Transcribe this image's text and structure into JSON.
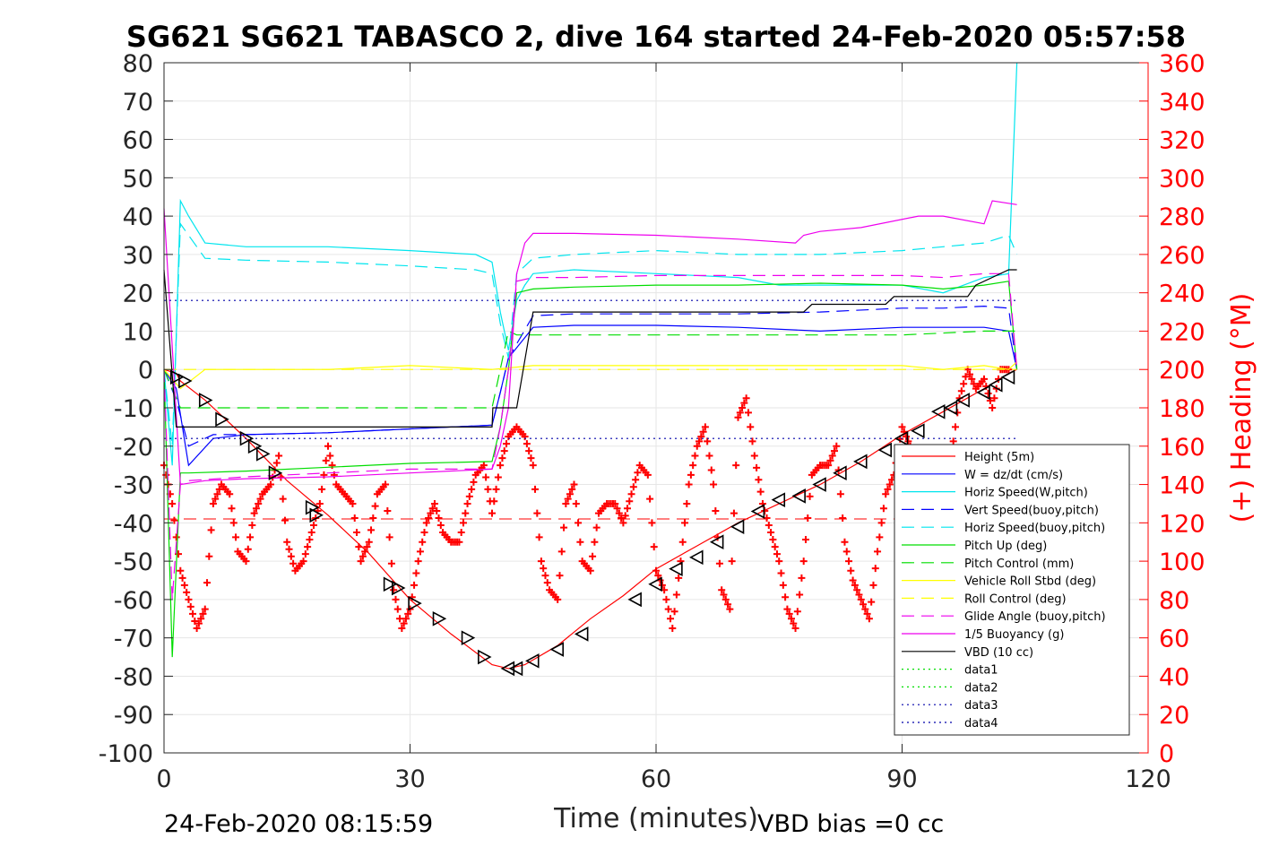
{
  "chart_data": {
    "type": "line",
    "title": "SG621 SG621 TABASCO 2, dive 164 started 24-Feb-2020 05:57:58",
    "xlabel": "Time (minutes)",
    "ylabel": "",
    "y2label": "(+) Heading (°M)",
    "xlim": [
      0,
      120
    ],
    "ylim": [
      -100,
      80
    ],
    "y2lim": [
      0,
      360
    ],
    "grid": true,
    "legend_position": "bottom-right",
    "xticks": [
      "0",
      "30",
      "60",
      "90",
      "120"
    ],
    "yticks": [
      "80",
      "70",
      "60",
      "50",
      "40",
      "30",
      "20",
      "10",
      "0",
      "-10",
      "-20",
      "-30",
      "-40",
      "-50",
      "-60",
      "-70",
      "-80",
      "-90",
      "-100"
    ],
    "y2ticks": [
      "360",
      "340",
      "320",
      "300",
      "280",
      "260",
      "240",
      "220",
      "200",
      "180",
      "160",
      "140",
      "120",
      "100",
      "80",
      "60",
      "40",
      "20",
      "0"
    ],
    "footer_left": "24-Feb-2020 08:15:59",
    "footer_right": "VBD bias =0 cc",
    "series": [
      {
        "name": "Height (5m)",
        "color": "#ff0000",
        "style": "solid",
        "x": [
          0,
          1.5,
          2,
          5,
          10,
          15,
          20,
          25,
          30,
          35,
          40,
          42,
          44,
          48,
          52,
          56,
          60,
          65,
          70,
          75,
          80,
          85,
          90,
          95,
          100,
          103,
          104
        ],
        "y": [
          0,
          -1,
          -3,
          -8,
          -18,
          -29,
          -38,
          -48,
          -60,
          -69,
          -77,
          -78,
          -77,
          -72,
          -65,
          -59,
          -52,
          -46,
          -40,
          -35,
          -30,
          -24,
          -17,
          -11,
          -5,
          -1,
          0
        ]
      },
      {
        "name": "W = dz/dt (cm/s)",
        "color": "#0000ff",
        "style": "solid",
        "x": [
          0,
          1.5,
          3,
          6,
          10,
          20,
          30,
          40,
          41,
          42,
          45,
          50,
          60,
          70,
          80,
          90,
          95,
          100,
          103,
          104
        ],
        "y": [
          0,
          -5,
          -25,
          -18,
          -17,
          -16.5,
          -15.5,
          -14.5,
          -6,
          3,
          11,
          11.5,
          11.5,
          11,
          10,
          11,
          11,
          11,
          10,
          0
        ]
      },
      {
        "name": "Horiz Speed(W,pitch)",
        "color": "#00e5ee",
        "style": "solid",
        "x": [
          0,
          1,
          2,
          3,
          5,
          10,
          20,
          30,
          38,
          40,
          41,
          42,
          43,
          44,
          45,
          50,
          60,
          70,
          75,
          80,
          90,
          95,
          100,
          103,
          104
        ],
        "y": [
          0,
          -25,
          44,
          40,
          33,
          32,
          32,
          31,
          30,
          28,
          15,
          5,
          18,
          22,
          25,
          26,
          25,
          24,
          22,
          22,
          22,
          20,
          24,
          25,
          80
        ]
      },
      {
        "name": "Vert Speed(buoy,pitch)",
        "color": "#0000ff",
        "style": "dashed",
        "x": [
          0,
          1.5,
          3,
          6,
          10,
          20,
          30,
          40,
          41,
          42,
          45,
          50,
          60,
          70,
          80,
          90,
          95,
          100,
          103,
          104
        ],
        "y": [
          0,
          -8,
          -20,
          -17,
          -17,
          -16.5,
          -15.5,
          -14.5,
          -6,
          3,
          14,
          14.5,
          14.5,
          14.5,
          15,
          16,
          16,
          16.5,
          16,
          0
        ]
      },
      {
        "name": "Horiz Speed(buoy,pitch)",
        "color": "#00e5ee",
        "style": "dashed",
        "x": [
          0,
          1,
          2,
          3,
          5,
          10,
          20,
          30,
          38,
          40,
          41,
          42,
          43,
          45,
          50,
          60,
          70,
          80,
          90,
          95,
          100,
          103,
          104
        ],
        "y": [
          0,
          -20,
          38,
          35,
          29,
          28.5,
          28,
          27,
          26,
          25,
          12,
          3,
          25,
          29,
          30,
          31,
          30,
          30,
          31,
          32,
          33,
          35,
          30
        ]
      },
      {
        "name": "Pitch Up (deg)",
        "color": "#00dd00",
        "style": "solid",
        "x": [
          0,
          1,
          2,
          3,
          10,
          20,
          30,
          40,
          41,
          42,
          43,
          45,
          50,
          60,
          70,
          80,
          90,
          95,
          100,
          103,
          104
        ],
        "y": [
          0,
          -75,
          -27,
          -27,
          -26.5,
          -25.5,
          -24.5,
          -24,
          -15,
          0,
          20,
          21,
          21.5,
          22,
          22,
          22.5,
          22,
          21,
          22,
          23,
          0
        ]
      },
      {
        "name": "Pitch Control (mm)",
        "color": "#00dd00",
        "style": "dashed",
        "x": [
          0,
          2,
          3,
          40,
          42,
          43,
          50,
          60,
          70,
          80,
          90,
          100,
          104
        ],
        "y": [
          0,
          -10,
          -10,
          -10,
          10,
          9,
          9,
          9,
          9,
          9,
          9,
          10,
          10
        ]
      },
      {
        "name": "Vehicle Roll Stbd (deg)",
        "color": "#ffff00",
        "style": "solid",
        "x": [
          0,
          2,
          5,
          10,
          20,
          30,
          40,
          45,
          50,
          60,
          70,
          80,
          90,
          95,
          100,
          103,
          104
        ],
        "y": [
          0,
          -5,
          0,
          0,
          0,
          1,
          0,
          1,
          1,
          1,
          1,
          1,
          1,
          0,
          1,
          0,
          2
        ]
      },
      {
        "name": "Roll Control (deg)",
        "color": "#ffff00",
        "style": "dashed",
        "x": [
          0,
          2,
          5,
          10,
          20,
          30,
          40,
          45,
          50,
          60,
          70,
          80,
          90,
          95,
          100,
          104
        ],
        "y": [
          0,
          0,
          0,
          0,
          0,
          0,
          0,
          0,
          0,
          0,
          0,
          0,
          0,
          0,
          0,
          0
        ]
      },
      {
        "name": "Glide Angle (buoy,pitch)",
        "color": "#ee00ee",
        "style": "dashed",
        "x": [
          0,
          1,
          2,
          3,
          10,
          20,
          30,
          40,
          41,
          42,
          43,
          45,
          50,
          60,
          70,
          80,
          90,
          95,
          100,
          103,
          104
        ],
        "y": [
          0,
          -60,
          -30,
          -29,
          -28,
          -27,
          -26,
          -26,
          -15,
          0,
          23,
          24,
          24,
          24.5,
          24.5,
          24.5,
          24.5,
          24,
          25,
          25,
          0
        ]
      },
      {
        "name": "1/5 Buoyancy (g)",
        "color": "#ee00ee",
        "style": "solid",
        "x": [
          0,
          2,
          5,
          10,
          20,
          30,
          40,
          41,
          42,
          43,
          44,
          45,
          50,
          60,
          70,
          77,
          78,
          80,
          85,
          92,
          95,
          100,
          101,
          104
        ],
        "y": [
          42,
          -30,
          -29,
          -28.5,
          -28,
          -27,
          -26,
          -20,
          -10,
          25,
          33,
          35.5,
          35.5,
          35,
          34,
          33,
          35,
          36,
          37,
          40,
          40,
          38,
          44,
          43
        ]
      },
      {
        "name": "VBD (10 cc)",
        "color": "#000000",
        "style": "solid",
        "x": [
          0,
          1.5,
          2,
          3,
          10,
          20,
          30,
          40,
          40.1,
          43,
          45,
          50,
          60,
          70,
          78,
          79,
          88,
          89,
          98,
          99,
          103,
          104
        ],
        "y": [
          26,
          -15,
          -15,
          -15,
          -15,
          -15,
          -15,
          -15,
          -10,
          -10,
          15,
          15,
          15,
          15,
          15,
          17,
          17,
          19,
          19,
          22,
          26,
          26
        ]
      },
      {
        "name": "data1",
        "color": "#00dd00",
        "style": "dotted",
        "x": [],
        "y": []
      },
      {
        "name": "data2",
        "color": "#00dd00",
        "style": "dotted",
        "x": [],
        "y": []
      },
      {
        "name": "data3",
        "color": "#0000aa",
        "style": "dotted",
        "x": [
          0,
          104
        ],
        "y": [
          18,
          18
        ]
      },
      {
        "name": "data4",
        "color": "#0000aa",
        "style": "dotted",
        "x": [
          0,
          104
        ],
        "y": [
          -18,
          -18
        ]
      }
    ],
    "heading": {
      "axis": "right",
      "color": "#ff0000",
      "marker": "+",
      "x": [
        0,
        1,
        2,
        3,
        4,
        5,
        6,
        7,
        8,
        9,
        10,
        11,
        12,
        13,
        14,
        15,
        16,
        17,
        18,
        19,
        20,
        21,
        22,
        23,
        24,
        25,
        26,
        27,
        28,
        29,
        30,
        31,
        32,
        33,
        34,
        35,
        36,
        37,
        38,
        39,
        40,
        41,
        42,
        43,
        44,
        45,
        46,
        47,
        48,
        49,
        50,
        51,
        52,
        53,
        54,
        55,
        56,
        57,
        58,
        59,
        60,
        61,
        62,
        63,
        64,
        65,
        66,
        67,
        68,
        69,
        70,
        71,
        72,
        73,
        74,
        75,
        76,
        77,
        78,
        79,
        80,
        81,
        82,
        83,
        84,
        85,
        86,
        87,
        88,
        89,
        90,
        91,
        92,
        93,
        94,
        95,
        96,
        97,
        98,
        99,
        100,
        101,
        102,
        103
      ],
      "y": [
        150,
        130,
        95,
        80,
        65,
        75,
        130,
        140,
        135,
        105,
        100,
        125,
        135,
        140,
        155,
        110,
        95,
        100,
        115,
        130,
        160,
        140,
        135,
        130,
        100,
        110,
        135,
        140,
        85,
        65,
        75,
        100,
        120,
        130,
        115,
        110,
        110,
        130,
        145,
        150,
        125,
        150,
        165,
        170,
        165,
        150,
        100,
        85,
        80,
        130,
        140,
        100,
        95,
        125,
        130,
        130,
        120,
        135,
        150,
        145,
        95,
        85,
        65,
        100,
        140,
        160,
        170,
        140,
        85,
        75,
        175,
        185,
        155,
        130,
        115,
        100,
        75,
        65,
        100,
        145,
        150,
        150,
        160,
        110,
        90,
        80,
        70,
        105,
        135,
        145,
        170,
        160,
        150,
        120,
        135,
        150,
        155,
        185,
        200,
        190,
        195,
        180,
        200,
        200
      ]
    },
    "reference_line": {
      "axis": "right",
      "color": "#ff0000",
      "style": "dashed",
      "y": 122,
      "x": [
        0,
        104
      ]
    },
    "triangle_markers": {
      "color": "#000000",
      "x": [
        1.5,
        2.5,
        5,
        7,
        10,
        11,
        12,
        13.5,
        18,
        18.5,
        27.5,
        28.5,
        30.5,
        33.5,
        37,
        39,
        42,
        43,
        45,
        48,
        51,
        57.5,
        60,
        62.5,
        65,
        67.5,
        70,
        72.5,
        75,
        77.5,
        80,
        82.5,
        85,
        88,
        90,
        92,
        94.5,
        96,
        97.5,
        100,
        101.5,
        103
      ],
      "y": [
        -2,
        -3,
        -8,
        -13,
        -18,
        -20,
        -22,
        -27,
        -36,
        -38,
        -56,
        -57,
        -61,
        -65,
        -70,
        -75,
        -78,
        -78,
        -76,
        -73,
        -69,
        -60,
        -56,
        -52,
        -49,
        -45,
        -41,
        -37,
        -34,
        -33,
        -30,
        -27,
        -24,
        -21,
        -18,
        -16,
        -11,
        -10,
        -8,
        -6,
        -4,
        -2
      ]
    }
  }
}
